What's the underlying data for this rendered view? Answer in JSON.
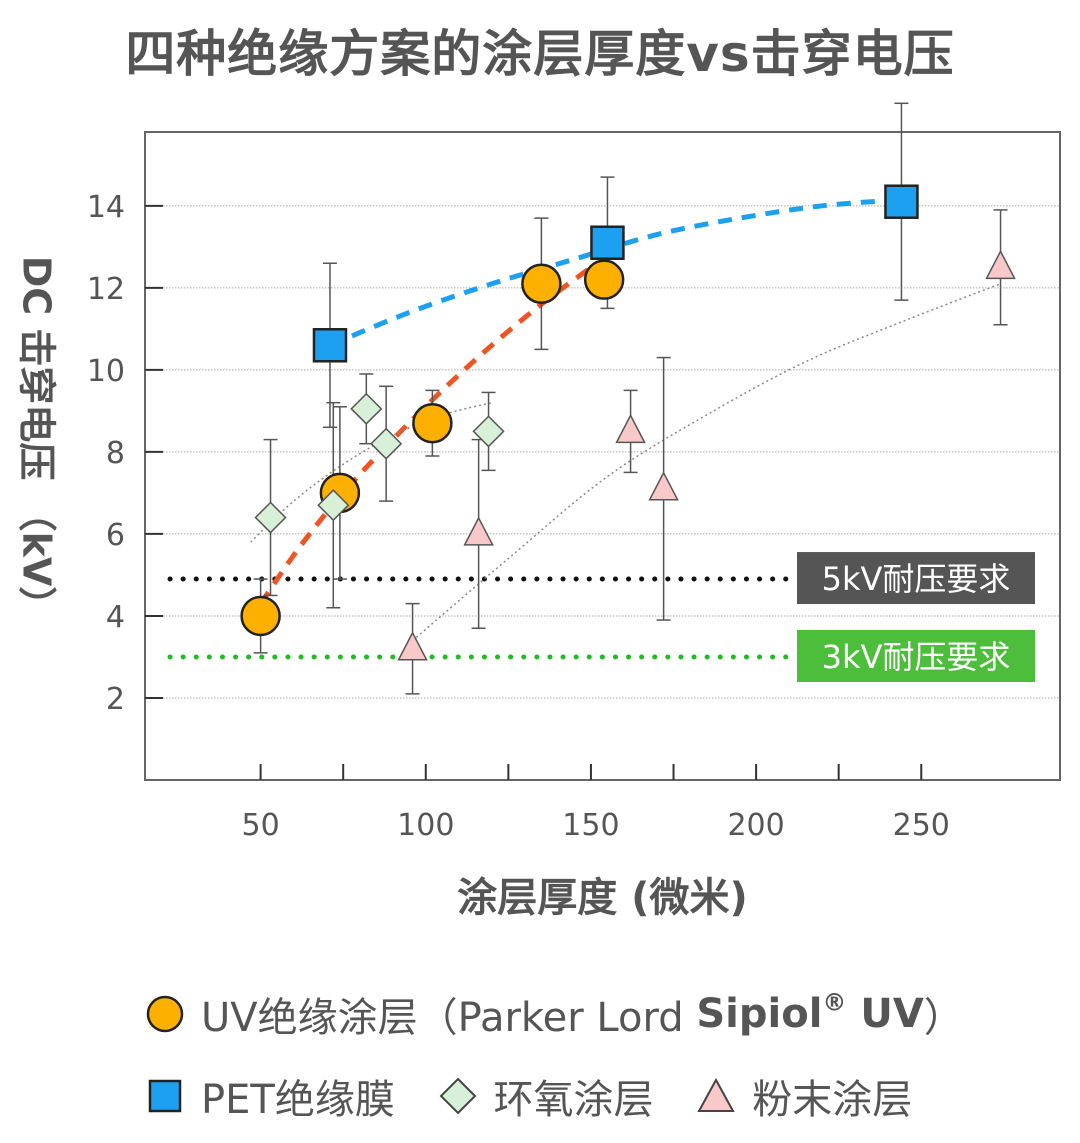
{
  "title": "四种绝缘方案的涂层厚度vs击穿电压",
  "chart_data": {
    "type": "scatter",
    "title": "四种绝缘方案的涂层厚度vs击穿电压",
    "xlabel": "涂层厚度 (微米)",
    "ylabel": "DC 击穿电压 （kV）",
    "xlim": [
      15,
      292
    ],
    "ylim": [
      0,
      15.8
    ],
    "xticks": [
      50,
      100,
      150,
      200,
      250
    ],
    "yticks": [
      2,
      4,
      6,
      8,
      10,
      12,
      14
    ],
    "grid": "horizontal",
    "legend_position": "bottom",
    "series": [
      {
        "name": "UV绝缘涂层 (Parker Lord Sipiol® UV)",
        "marker": "circle",
        "color": "#FDB000",
        "points": [
          {
            "x": 50,
            "y": 4.0,
            "err": 0.9
          },
          {
            "x": 74,
            "y": 7.0,
            "err": 2.1
          },
          {
            "x": 102,
            "y": 8.7,
            "err": 0.8
          },
          {
            "x": 135,
            "y": 12.1,
            "err": 1.6
          },
          {
            "x": 154,
            "y": 12.2,
            "err": 0
          }
        ],
        "trend": {
          "type": "dashed",
          "color": "#EE5522",
          "x": [
            50,
            62,
            75,
            90,
            105,
            120,
            135,
            150
          ],
          "y": [
            4.3,
            5.7,
            7.0,
            8.3,
            9.5,
            10.6,
            11.6,
            12.5
          ]
        }
      },
      {
        "name": "PET绝缘膜",
        "marker": "square",
        "color": "#1EA0F0",
        "points": [
          {
            "x": 71,
            "y": 10.6,
            "err": 2.0
          },
          {
            "x": 155,
            "y": 13.1,
            "err": 1.6
          },
          {
            "x": 244,
            "y": 14.1,
            "err": 2.4
          }
        ],
        "trend": {
          "type": "dashed",
          "color": "#1EA0F0",
          "x": [
            71,
            95,
            120,
            145,
            170,
            195,
            220,
            244
          ],
          "y": [
            10.6,
            11.4,
            12.1,
            12.7,
            13.3,
            13.7,
            14.0,
            14.15
          ]
        }
      },
      {
        "name": "环氧涂层",
        "marker": "diamond",
        "color": "#D8F0D8",
        "points": [
          {
            "x": 53,
            "y": 6.4,
            "err": 1.9
          },
          {
            "x": 72,
            "y": 6.7,
            "err": 2.5
          },
          {
            "x": 82,
            "y": 9.05,
            "err": 0.85
          },
          {
            "x": 88,
            "y": 8.2,
            "err": 1.4
          },
          {
            "x": 119,
            "y": 8.5,
            "err": 0.95
          }
        ],
        "trend": {
          "type": "dotted",
          "color": "#888888",
          "x": [
            47,
            60,
            75,
            90,
            105,
            120
          ],
          "y": [
            5.8,
            6.8,
            7.7,
            8.4,
            8.9,
            9.2
          ]
        }
      },
      {
        "name": "粉末涂层",
        "marker": "triangle",
        "color": "#F9C8C8",
        "points": [
          {
            "x": 96,
            "y": 3.2,
            "err": 1.1
          },
          {
            "x": 116,
            "y": 6.0,
            "err": 2.3
          },
          {
            "x": 162,
            "y": 8.5,
            "err": 1.0
          },
          {
            "x": 172,
            "y": 7.1,
            "err": 3.2
          },
          {
            "x": 274,
            "y": 12.5,
            "err": 1.4
          }
        ],
        "trend": {
          "type": "dotted",
          "color": "#888888",
          "x": [
            96,
            125,
            155,
            185,
            215,
            245,
            274
          ],
          "y": [
            3.4,
            5.4,
            7.4,
            8.9,
            10.2,
            11.2,
            12.1
          ]
        }
      }
    ],
    "reference_lines": [
      {
        "y": 4.9,
        "label": "5kV耐压要求",
        "color": "#111111",
        "label_bg": "#555555"
      },
      {
        "y": 3.0,
        "label": "3kV耐压要求",
        "color": "#22BB22",
        "label_bg": "#4DBE3B"
      }
    ]
  },
  "legend": {
    "uv_label": "UV绝缘涂层",
    "uv_paren_open": "（Parker Lord ",
    "uv_brand": "Sipiol",
    "uv_reg": "®",
    "uv_suffix": " UV",
    "uv_paren_close": "）",
    "pet_label": "PET绝缘膜",
    "epoxy_label": "环氧涂层",
    "powder_label": "粉末涂层"
  }
}
